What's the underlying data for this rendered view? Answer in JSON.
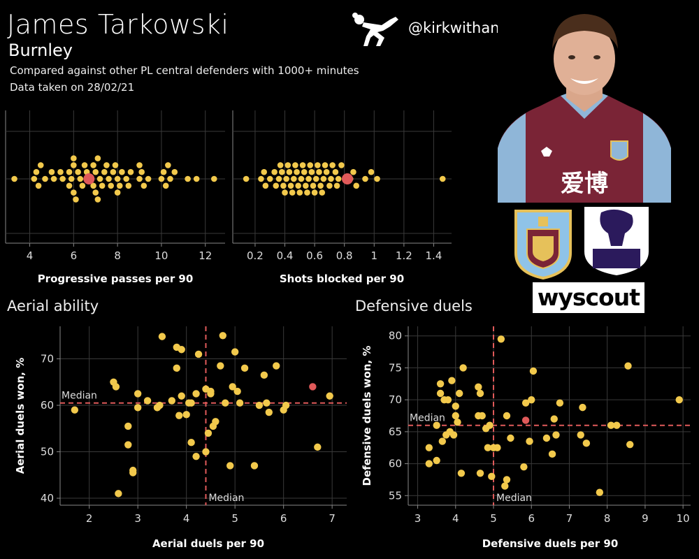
{
  "header": {
    "player_name": "James Tarkowski",
    "club": "Burnley",
    "subtitle_1": "Compared against other PL central defenders with 1000+ minutes",
    "subtitle_2": "Data taken on 28/02/21",
    "handle": "@kirkwithane",
    "wyscout_label": "wyscout",
    "photo_shirt_sponsor": "爱博"
  },
  "colors": {
    "points": "#f2c94c",
    "highlight": "#e05a5a",
    "median_line": "#e05a5a",
    "background": "#000000",
    "grid": "#3a3a3a"
  },
  "chart_data": [
    {
      "type": "scatter",
      "xlabel": "Progressive passes per 90",
      "xticks": [
        4,
        6,
        8,
        10,
        12
      ],
      "xlim": [
        2.9,
        12.9
      ],
      "note": "beeswarm distribution, vertical position is jitter only",
      "values": [
        3.3,
        4.2,
        4.3,
        4.4,
        4.5,
        4.7,
        5.0,
        5.1,
        5.4,
        5.5,
        5.8,
        5.8,
        5.9,
        6.0,
        6.0,
        6.0,
        6.1,
        6.2,
        6.3,
        6.4,
        6.5,
        6.6,
        6.8,
        6.9,
        6.9,
        7.0,
        7.0,
        7.1,
        7.1,
        7.2,
        7.3,
        7.4,
        7.5,
        7.6,
        7.7,
        7.8,
        7.9,
        8.0,
        8.0,
        8.1,
        8.2,
        8.4,
        8.5,
        8.6,
        9.0,
        9.0,
        9.1,
        9.2,
        9.4,
        10.0,
        10.1,
        10.2,
        10.3,
        10.4,
        10.6,
        11.2,
        11.6,
        12.4
      ],
      "highlight": {
        "name": "James Tarkowski",
        "value": 6.7
      }
    },
    {
      "type": "scatter",
      "xlabel": "Shots blocked per 90",
      "xticks": [
        0.2,
        0.4,
        0.6,
        0.8,
        1.0,
        1.2,
        1.4
      ],
      "xlim": [
        0.05,
        1.52
      ],
      "note": "beeswarm distribution, vertical position is jitter only",
      "values": [
        0.14,
        0.24,
        0.26,
        0.27,
        0.3,
        0.33,
        0.34,
        0.36,
        0.37,
        0.38,
        0.39,
        0.4,
        0.41,
        0.42,
        0.43,
        0.44,
        0.45,
        0.46,
        0.47,
        0.48,
        0.49,
        0.5,
        0.51,
        0.52,
        0.53,
        0.54,
        0.55,
        0.56,
        0.57,
        0.58,
        0.59,
        0.6,
        0.61,
        0.62,
        0.63,
        0.64,
        0.65,
        0.66,
        0.67,
        0.68,
        0.7,
        0.71,
        0.72,
        0.74,
        0.75,
        0.76,
        0.78,
        0.84,
        0.86,
        0.88,
        0.94,
        0.98,
        1.02,
        1.46
      ],
      "highlight": {
        "name": "James Tarkowski",
        "value": 0.82
      }
    },
    {
      "type": "scatter",
      "title": "Aerial ability",
      "xlabel": "Aerial duels per 90",
      "ylabel": "Aerial duels won, %",
      "xlim": [
        1.4,
        7.3
      ],
      "ylim": [
        38.5,
        77
      ],
      "xticks": [
        2,
        3,
        4,
        5,
        6,
        7
      ],
      "yticks": [
        40,
        50,
        60,
        70
      ],
      "median_label": "Median",
      "median_x": 4.4,
      "median_y": 60.5,
      "x": [
        1.7,
        2.5,
        2.55,
        2.6,
        2.8,
        2.8,
        2.9,
        2.9,
        3.0,
        3.0,
        3.2,
        3.4,
        3.45,
        3.5,
        3.7,
        3.8,
        3.8,
        3.85,
        3.9,
        3.9,
        4.0,
        4.05,
        4.1,
        4.1,
        4.2,
        4.2,
        4.25,
        4.4,
        4.4,
        4.45,
        4.5,
        4.5,
        4.55,
        4.6,
        4.7,
        4.75,
        4.8,
        4.9,
        4.95,
        5.0,
        5.05,
        5.1,
        5.2,
        5.4,
        5.5,
        5.6,
        5.65,
        5.7,
        5.85,
        6.0,
        6.05,
        6.7,
        6.95
      ],
      "y": [
        59.0,
        65.0,
        64.0,
        41.0,
        51.5,
        55.5,
        46.0,
        45.5,
        59.5,
        62.5,
        61.0,
        59.5,
        60.0,
        74.8,
        61.0,
        68.0,
        72.5,
        57.8,
        62.0,
        72.0,
        58.0,
        60.5,
        60.5,
        52.0,
        49.0,
        62.5,
        71.0,
        50.0,
        63.5,
        54.0,
        63.0,
        62.5,
        55.5,
        56.5,
        68.5,
        75.0,
        60.5,
        47.0,
        64.0,
        71.5,
        63.0,
        60.5,
        68.0,
        47.0,
        60.0,
        66.5,
        60.5,
        58.5,
        68.5,
        59.0,
        60.0,
        51.0,
        62.0
      ],
      "highlight": {
        "name": "James Tarkowski",
        "x": 6.6,
        "y": 64.0
      }
    },
    {
      "type": "scatter",
      "title": "Defensive duels",
      "xlabel": "Defensive duels per 90",
      "ylabel": "Defensive duels won, %",
      "xlim": [
        2.75,
        10.2
      ],
      "ylim": [
        53.5,
        81.5
      ],
      "xticks": [
        3,
        4,
        5,
        6,
        7,
        8,
        9,
        10
      ],
      "yticks": [
        55,
        60,
        65,
        70,
        75,
        80
      ],
      "median_label": "Median",
      "median_x": 5.0,
      "median_y": 66.0,
      "x": [
        3.3,
        3.3,
        3.5,
        3.5,
        3.6,
        3.6,
        3.65,
        3.7,
        3.75,
        3.8,
        3.85,
        3.9,
        3.95,
        4.0,
        4.0,
        4.05,
        4.1,
        4.15,
        4.2,
        4.6,
        4.6,
        4.65,
        4.65,
        4.7,
        4.8,
        4.85,
        4.9,
        4.95,
        5.0,
        5.1,
        5.2,
        5.3,
        5.35,
        5.35,
        5.45,
        5.8,
        5.85,
        5.95,
        6.0,
        6.05,
        6.4,
        6.55,
        6.6,
        6.65,
        6.75,
        7.3,
        7.35,
        7.45,
        7.8,
        8.1,
        8.25,
        8.55,
        8.6,
        9.9
      ],
      "y": [
        60.0,
        62.5,
        66.0,
        60.5,
        72.5,
        71.0,
        63.5,
        70.0,
        64.5,
        70.0,
        65.0,
        73.0,
        64.5,
        67.5,
        69.0,
        66.5,
        71.0,
        58.5,
        75.0,
        67.5,
        72.0,
        71.0,
        58.5,
        67.5,
        65.5,
        62.5,
        66.0,
        58.0,
        62.5,
        62.5,
        79.5,
        56.5,
        57.5,
        67.5,
        64.0,
        59.5,
        69.5,
        63.5,
        70.0,
        74.5,
        64.0,
        61.5,
        67.0,
        64.5,
        69.5,
        64.5,
        68.8,
        63.2,
        55.5,
        66.0,
        66.0,
        75.3,
        63.0,
        70.0
      ],
      "highlight": {
        "name": "James Tarkowski",
        "x": 5.85,
        "y": 66.8
      }
    }
  ]
}
